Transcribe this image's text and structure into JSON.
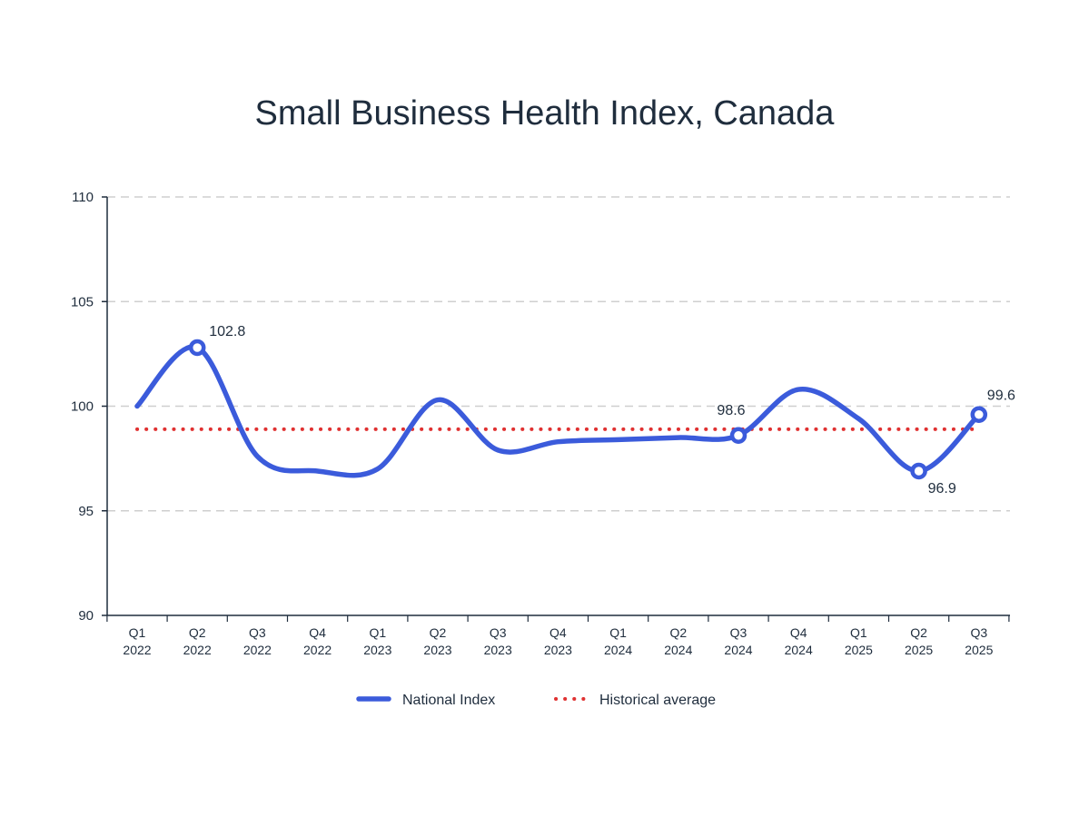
{
  "chart_data": {
    "type": "line",
    "title": "Small Business Health Index, Canada",
    "xlabel": "",
    "ylabel": "",
    "ylim": [
      90,
      110
    ],
    "yticks": [
      90,
      95,
      100,
      105,
      110
    ],
    "grid": "horizontal dashed",
    "legend_position": "bottom-center",
    "categories": [
      [
        "Q1",
        "2022"
      ],
      [
        "Q2",
        "2022"
      ],
      [
        "Q3",
        "2022"
      ],
      [
        "Q4",
        "2022"
      ],
      [
        "Q1",
        "2023"
      ],
      [
        "Q2",
        "2023"
      ],
      [
        "Q3",
        "2023"
      ],
      [
        "Q4",
        "2023"
      ],
      [
        "Q1",
        "2024"
      ],
      [
        "Q2",
        "2024"
      ],
      [
        "Q3",
        "2024"
      ],
      [
        "Q4",
        "2024"
      ],
      [
        "Q1",
        "2025"
      ],
      [
        "Q2",
        "2025"
      ],
      [
        "Q3",
        "2025"
      ]
    ],
    "series": [
      {
        "name": "National Index",
        "color": "#3b5bdb",
        "values": [
          100.0,
          102.8,
          97.6,
          96.9,
          97.0,
          100.3,
          97.9,
          98.3,
          98.4,
          98.5,
          98.6,
          100.8,
          99.4,
          96.9,
          99.6
        ],
        "labeled_points": [
          {
            "index": 1,
            "label": "102.8"
          },
          {
            "index": 10,
            "label": "98.6"
          },
          {
            "index": 13,
            "label": "96.9"
          },
          {
            "index": 14,
            "label": "99.6"
          }
        ]
      },
      {
        "name": "Historical average",
        "color": "#e03131",
        "style": "dotted",
        "value": 98.9
      }
    ]
  }
}
